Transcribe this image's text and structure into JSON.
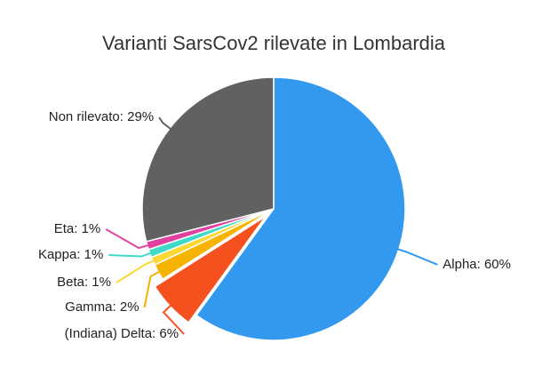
{
  "chart_data": {
    "type": "pie",
    "title": "Varianti SarsCov2 rilevate in Lombardia",
    "categories": [
      "Alpha: 60%",
      "(Indiana) Delta: 6%",
      "Gamma: 2%",
      "Beta: 1%",
      "Kappa: 1%",
      "Eta: 1%",
      "Non rilevato: 29%"
    ],
    "values": [
      60,
      6,
      2,
      1,
      1,
      1,
      29
    ],
    "colors": [
      "#3399ee",
      "#f4511e",
      "#f6b400",
      "#fdd835",
      "#3fd9c8",
      "#e040a0",
      "#616161"
    ],
    "exploded": [
      1
    ]
  }
}
